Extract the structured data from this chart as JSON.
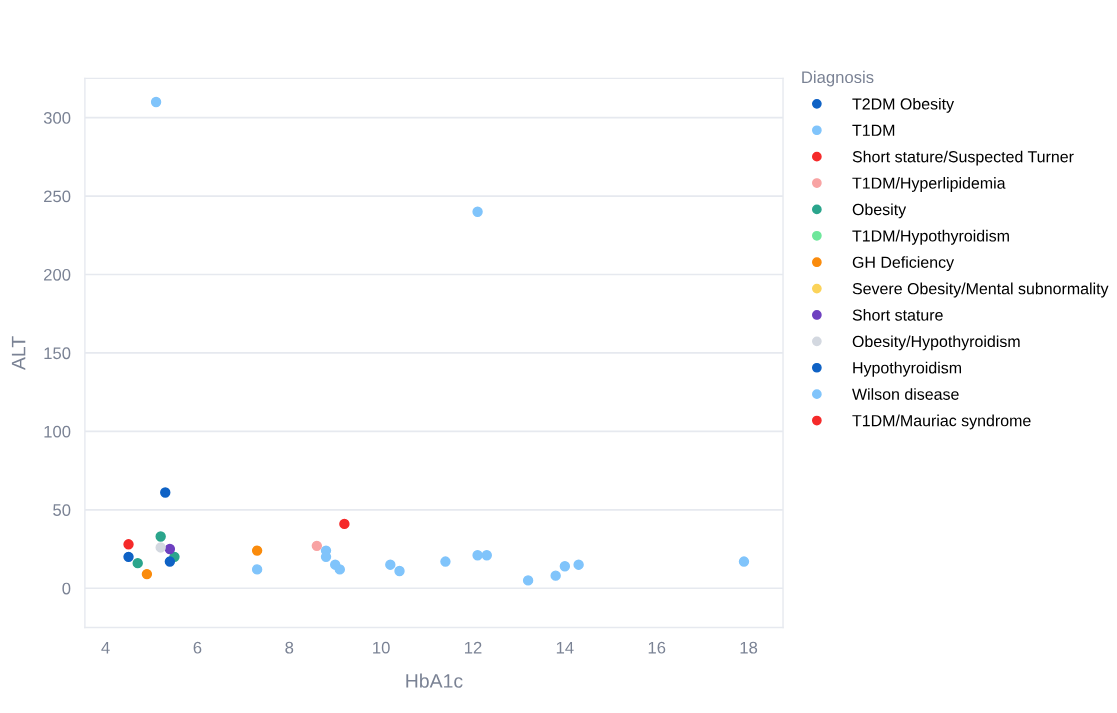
{
  "chart_data": {
    "type": "scatter",
    "xlabel": "HbA1c",
    "ylabel": "ALT",
    "legend_title": "Diagnosis",
    "xlim": [
      3.55,
      18.75
    ],
    "ylim": [
      -25,
      325
    ],
    "xticks": [
      4,
      6,
      8,
      10,
      12,
      14,
      16,
      18
    ],
    "yticks": [
      0,
      50,
      100,
      150,
      200,
      250,
      300
    ],
    "grid": "y",
    "legend": "right",
    "marker": "circle",
    "series": [
      {
        "name": "T2DM Obesity",
        "color": "#0f62c5",
        "x": [
          5.3
        ],
        "values": [
          61
        ]
      },
      {
        "name": "T1DM",
        "color": "#80c4fb",
        "x": [
          5.1,
          12.1,
          7.3,
          8.8,
          8.8,
          9.0,
          9.1,
          10.2,
          10.4,
          11.4,
          12.1,
          12.3,
          13.2,
          13.8,
          14.0,
          14.3,
          17.9
        ],
        "values": [
          310,
          240,
          12,
          24,
          20,
          15,
          12,
          15,
          11,
          17,
          21,
          21,
          5,
          8,
          14,
          15,
          17
        ]
      },
      {
        "name": "Short stature/Suspected Turner",
        "color": "#f52a2a",
        "x": [
          4.5
        ],
        "values": [
          28
        ]
      },
      {
        "name": "T1DM/Hyperlipidemia",
        "color": "#f8a3a3",
        "x": [
          8.6
        ],
        "values": [
          27
        ]
      },
      {
        "name": "Obesity",
        "color": "#2ba58c",
        "x": [
          4.7,
          5.2,
          5.5
        ],
        "values": [
          16,
          33,
          20
        ]
      },
      {
        "name": "T1DM/Hypothyroidism",
        "color": "#6ee79b"
      },
      {
        "name": "GH Deficiency",
        "color": "#fa8b0c",
        "x": [
          4.9,
          7.3
        ],
        "values": [
          9,
          24
        ]
      },
      {
        "name": "Severe Obesity/Mental subnormality",
        "color": "#fbd35a"
      },
      {
        "name": "Short stature",
        "color": "#6e40c0",
        "x": [
          5.4
        ],
        "values": [
          25
        ]
      },
      {
        "name": "Obesity/Hypothyroidism",
        "color": "#d3d8e0",
        "x": [
          5.2
        ],
        "values": [
          26
        ]
      },
      {
        "name": "Hypothyroidism",
        "color": "#0f62c5",
        "x": [
          4.5,
          5.4
        ],
        "values": [
          20,
          17
        ]
      },
      {
        "name": "Wilson disease",
        "color": "#80c4fb"
      },
      {
        "name": "T1DM/Mauriac syndrome",
        "color": "#f52a2a",
        "x": [
          9.2
        ],
        "values": [
          41
        ]
      }
    ]
  }
}
